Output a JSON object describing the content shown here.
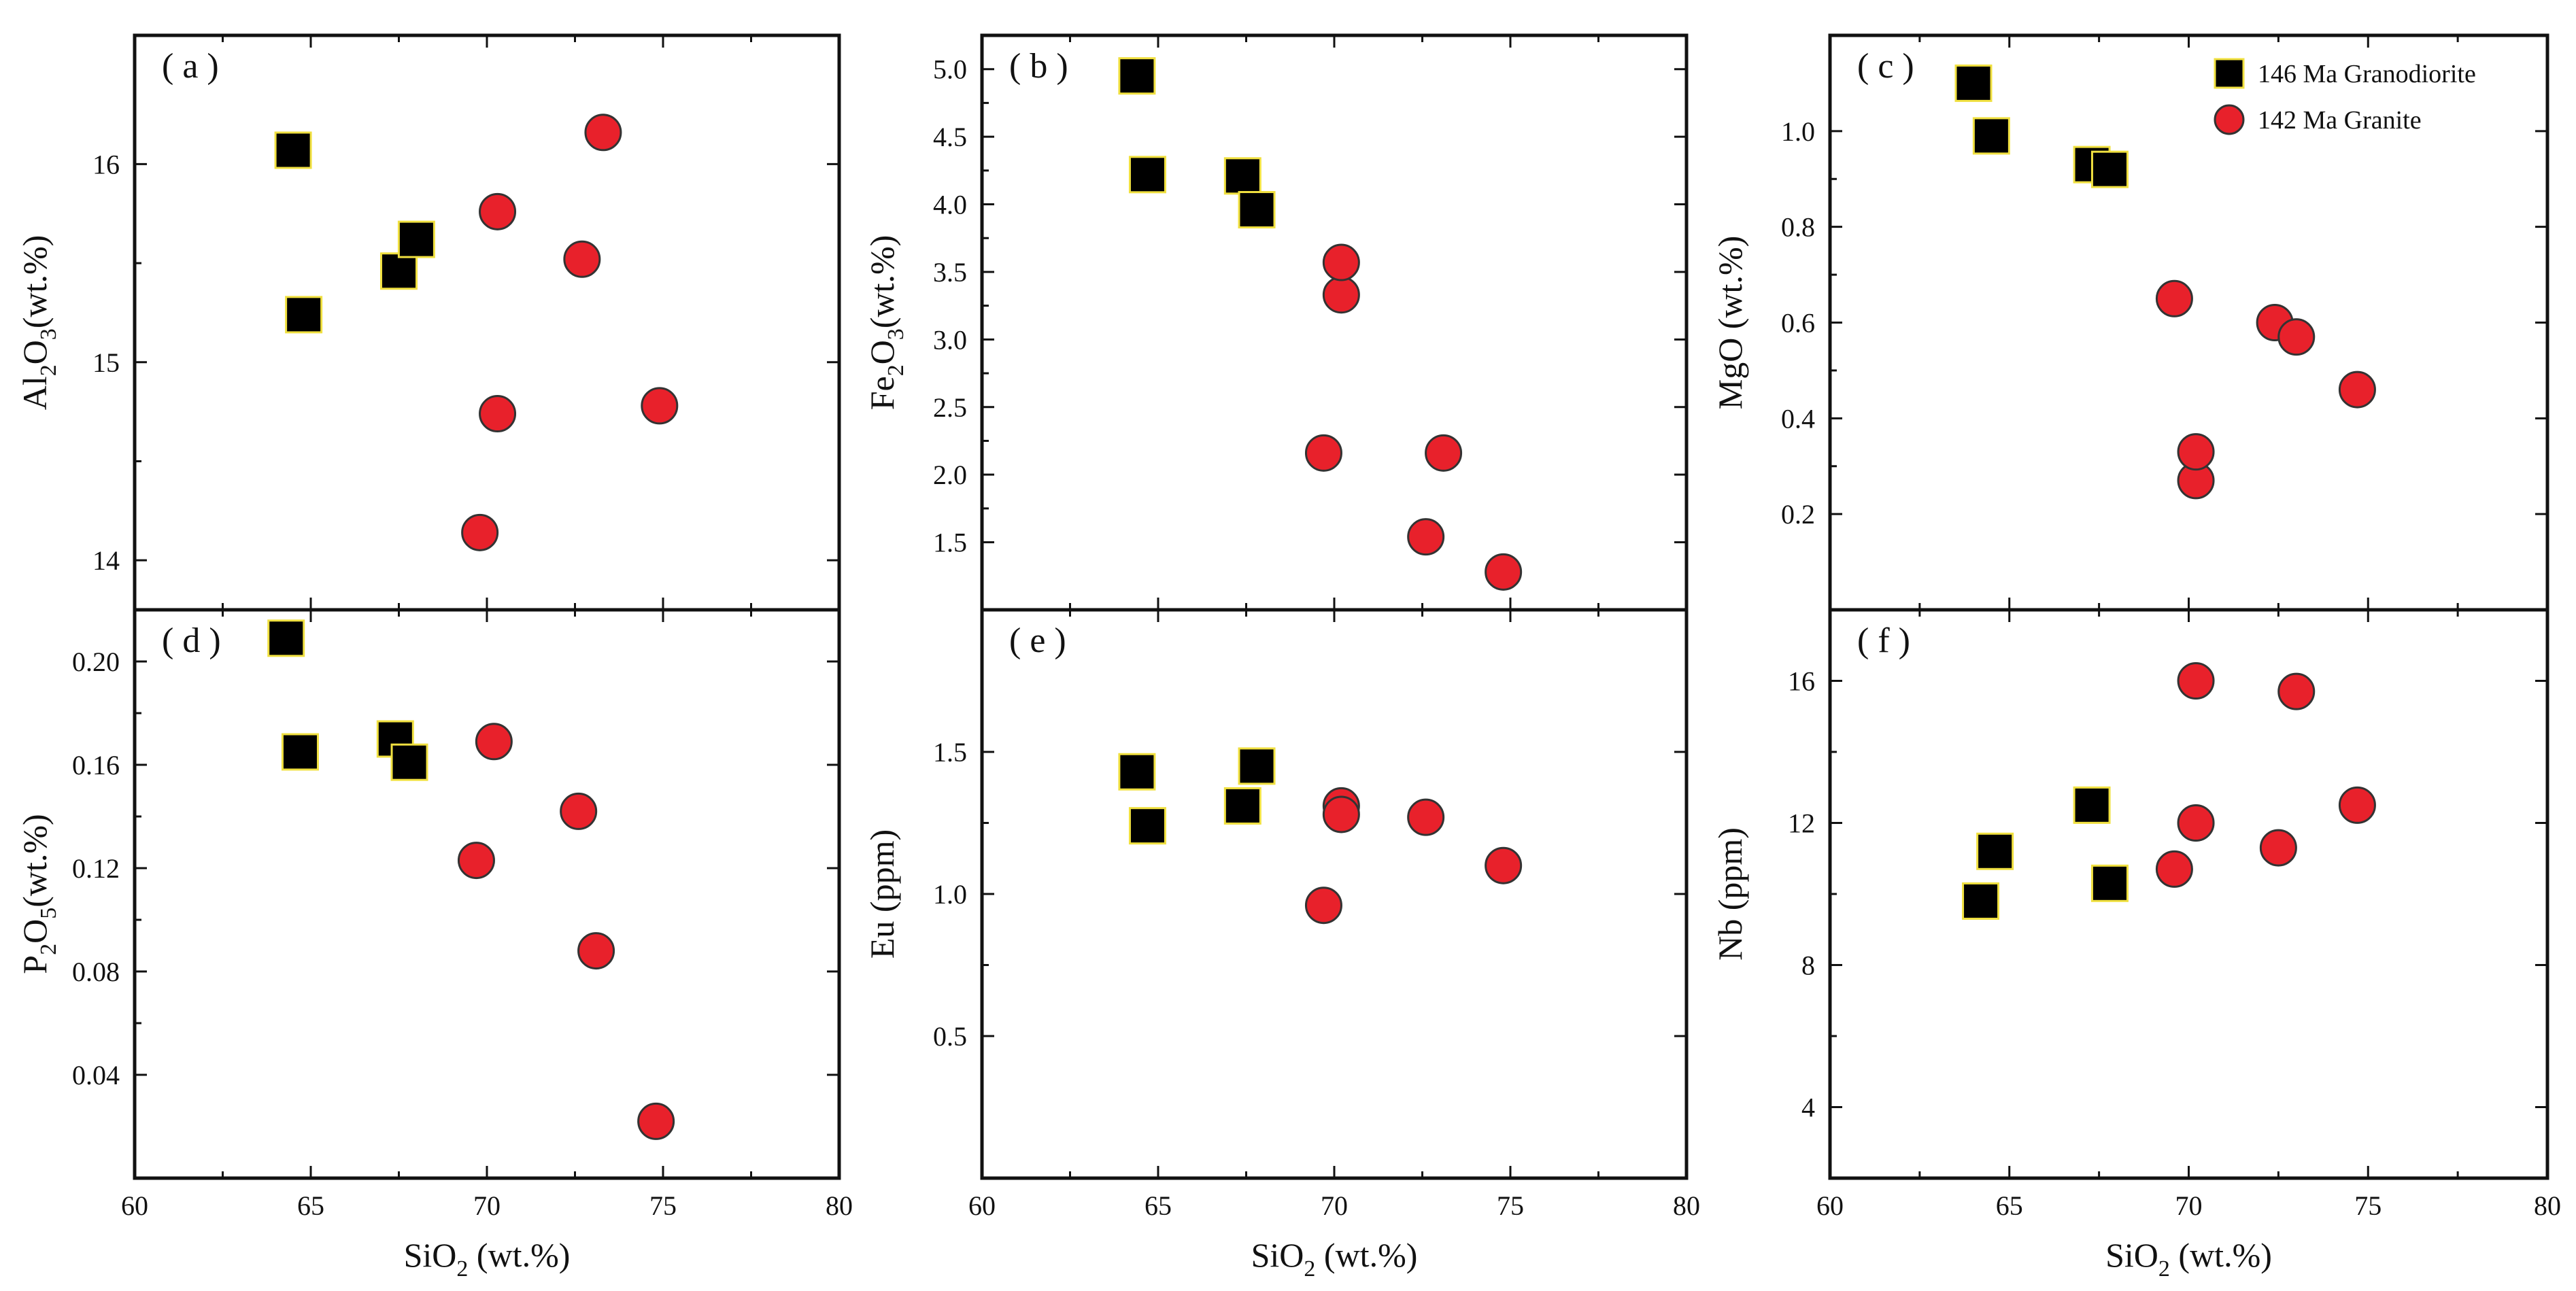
{
  "legend": [
    {
      "name": "146 Ma Granodiorite",
      "marker": "square"
    },
    {
      "name": "142 Ma Granite",
      "marker": "circle"
    }
  ],
  "colors": {
    "granodiorite_fill": "#000000",
    "granodiorite_edge": "#f0e040",
    "granite_fill": "#e8212b",
    "granite_edge": "#333333",
    "axis": "#111111"
  },
  "x_axis": {
    "label_main": "SiO",
    "label_sub": "2",
    "label_unit": "(wt.%)",
    "ticks": [
      "60",
      "65",
      "70",
      "75",
      "80"
    ]
  },
  "panels": [
    {
      "tag": "( a )",
      "ylabel": [
        [
          "Al",
          ""
        ],
        [
          "2",
          "sub"
        ],
        [
          "O",
          ""
        ],
        [
          "3",
          "sub"
        ],
        [
          "(wt.%)",
          ""
        ]
      ],
      "ytick_labels": [
        "14",
        "15",
        "16"
      ]
    },
    {
      "tag": "( b )",
      "ylabel": [
        [
          "Fe",
          ""
        ],
        [
          "2",
          "sub"
        ],
        [
          "O",
          ""
        ],
        [
          "3",
          "sub"
        ],
        [
          "(wt.%)",
          ""
        ]
      ],
      "ytick_labels": [
        "1.5",
        "2.0",
        "2.5",
        "3.0",
        "3.5",
        "4.0",
        "4.5",
        "5.0"
      ]
    },
    {
      "tag": "( c )",
      "ylabel": [
        [
          "MgO (wt.%)",
          ""
        ]
      ],
      "ytick_labels": [
        "0.2",
        "0.4",
        "0.6",
        "0.8",
        "1.0"
      ]
    },
    {
      "tag": "( d )",
      "ylabel": [
        [
          "P",
          ""
        ],
        [
          "2",
          "sub"
        ],
        [
          "O",
          ""
        ],
        [
          "5",
          "sub"
        ],
        [
          "(wt.%)",
          ""
        ]
      ],
      "ytick_labels": [
        "0.04",
        "0.08",
        "0.12",
        "0.16",
        "0.20"
      ]
    },
    {
      "tag": "( e )",
      "ylabel": [
        [
          "Eu (ppm)",
          ""
        ]
      ],
      "ytick_labels": [
        "0.5",
        "1.0",
        "1.5"
      ]
    },
    {
      "tag": "( f )",
      "ylabel": [
        [
          "Nb (ppm)",
          ""
        ]
      ],
      "ytick_labels": [
        "4",
        "8",
        "12",
        "16"
      ]
    }
  ],
  "chart_data": [
    {
      "type": "scatter",
      "title": "(a)",
      "xlabel": "SiO2 (wt.%)",
      "ylabel": "Al2O3 (wt.%)",
      "xlim": [
        60,
        80
      ],
      "ylim": [
        13.75,
        16.65
      ],
      "yticks": [
        14,
        15,
        16
      ],
      "series": [
        {
          "name": "146 Ma Granodiorite",
          "x": [
            64.5,
            64.8,
            67.5,
            68.0
          ],
          "y": [
            16.07,
            15.24,
            15.46,
            15.62
          ]
        },
        {
          "name": "142 Ma Granite",
          "x": [
            69.8,
            70.3,
            70.3,
            72.7,
            73.3,
            74.9
          ],
          "y": [
            14.14,
            14.74,
            15.76,
            15.52,
            16.16,
            14.78
          ]
        }
      ]
    },
    {
      "type": "scatter",
      "title": "(b)",
      "xlabel": "SiO2 (wt.%)",
      "ylabel": "Fe2O3 (wt.%)",
      "xlim": [
        60,
        80
      ],
      "ylim": [
        1.0,
        5.25
      ],
      "yticks": [
        1.5,
        2.0,
        2.5,
        3.0,
        3.5,
        4.0,
        4.5,
        5.0
      ],
      "series": [
        {
          "name": "146 Ma Granodiorite",
          "x": [
            64.4,
            64.7,
            67.4,
            67.8
          ],
          "y": [
            4.95,
            4.22,
            4.21,
            3.96
          ]
        },
        {
          "name": "142 Ma Granite",
          "x": [
            69.7,
            70.2,
            70.2,
            72.6,
            73.1,
            74.8
          ],
          "y": [
            2.16,
            3.33,
            3.57,
            1.54,
            2.16,
            1.28
          ]
        }
      ]
    },
    {
      "type": "scatter",
      "title": "(c)",
      "xlabel": "SiO2 (wt.%)",
      "ylabel": "MgO (wt.%)",
      "xlim": [
        60,
        80
      ],
      "ylim": [
        0.0,
        1.2
      ],
      "yticks": [
        0.2,
        0.4,
        0.6,
        0.8,
        1.0
      ],
      "series": [
        {
          "name": "146 Ma Granodiorite",
          "x": [
            64.0,
            64.5,
            67.3,
            67.8
          ],
          "y": [
            1.1,
            0.99,
            0.93,
            0.92
          ]
        },
        {
          "name": "142 Ma Granite",
          "x": [
            69.6,
            70.2,
            70.2,
            72.4,
            73.0,
            74.7
          ],
          "y": [
            0.65,
            0.27,
            0.33,
            0.6,
            0.57,
            0.46
          ]
        }
      ]
    },
    {
      "type": "scatter",
      "title": "(d)",
      "xlabel": "SiO2 (wt.%)",
      "ylabel": "P2O5 (wt.%)",
      "xlim": [
        60,
        80
      ],
      "ylim": [
        0.0,
        0.22
      ],
      "yticks": [
        0.04,
        0.08,
        0.12,
        0.16,
        0.2
      ],
      "series": [
        {
          "name": "146 Ma Granodiorite",
          "x": [
            64.3,
            64.7,
            67.4,
            67.8
          ],
          "y": [
            0.209,
            0.165,
            0.17,
            0.161
          ]
        },
        {
          "name": "142 Ma Granite",
          "x": [
            69.7,
            70.2,
            72.6,
            73.1,
            74.8
          ],
          "y": [
            0.123,
            0.169,
            0.142,
            0.088,
            0.022
          ]
        }
      ]
    },
    {
      "type": "scatter",
      "title": "(e)",
      "xlabel": "SiO2 (wt.%)",
      "ylabel": "Eu (ppm)",
      "xlim": [
        60,
        80
      ],
      "ylim": [
        0.0,
        2.0
      ],
      "yticks": [
        0.5,
        1.0,
        1.5
      ],
      "series": [
        {
          "name": "146 Ma Granodiorite",
          "x": [
            64.4,
            64.7,
            67.4,
            67.8
          ],
          "y": [
            1.43,
            1.24,
            1.31,
            1.45
          ]
        },
        {
          "name": "142 Ma Granite",
          "x": [
            69.7,
            70.2,
            70.2,
            72.6,
            74.8
          ],
          "y": [
            0.96,
            1.31,
            1.28,
            1.27,
            1.1
          ]
        }
      ]
    },
    {
      "type": "scatter",
      "title": "(f)",
      "xlabel": "SiO2 (wt.%)",
      "ylabel": "Nb (ppm)",
      "xlim": [
        60,
        80
      ],
      "ylim": [
        2.0,
        18.0
      ],
      "yticks": [
        4,
        8,
        12,
        16
      ],
      "series": [
        {
          "name": "146 Ma Granodiorite",
          "x": [
            64.2,
            64.6,
            67.3,
            67.8
          ],
          "y": [
            9.8,
            11.2,
            12.5,
            10.3
          ]
        },
        {
          "name": "142 Ma Granite",
          "x": [
            69.6,
            70.2,
            70.2,
            72.5,
            73.0,
            74.7
          ],
          "y": [
            10.7,
            12.0,
            16.0,
            11.3,
            15.7,
            12.5
          ]
        }
      ]
    }
  ]
}
